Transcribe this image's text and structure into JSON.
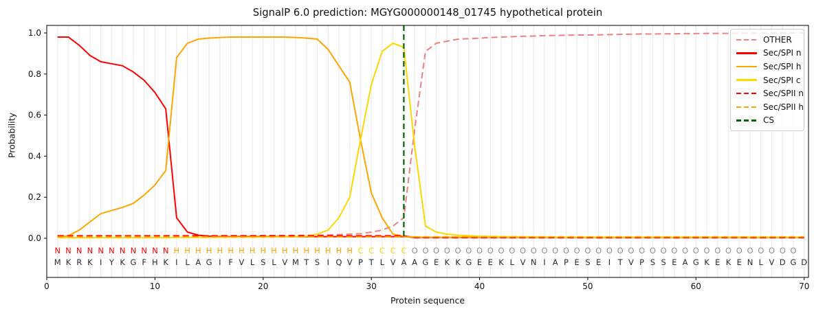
{
  "title": "SignalP 6.0 prediction: MGYG000000148_01745 hypothetical protein",
  "chart_data": {
    "type": "line",
    "title": "SignalP 6.0 prediction: MGYG000000148_01745 hypothetical protein",
    "xlabel": "Protein sequence",
    "ylabel": "Probability",
    "xlim": [
      0,
      70.4
    ],
    "ylim": [
      -0.19,
      1.04
    ],
    "x_ticks": [
      0,
      10,
      20,
      30,
      40,
      50,
      60,
      70
    ],
    "x_tick_labels": [
      "0",
      "10",
      "20",
      "30",
      "40",
      "50",
      "60",
      "70"
    ],
    "y_ticks": [
      0.0,
      0.2,
      0.4,
      0.6,
      0.8,
      1.0
    ],
    "y_tick_labels": [
      "0.0",
      "0.2",
      "0.4",
      "0.6",
      "0.8",
      "1.0"
    ],
    "grid": {
      "vertical_per_residue": true,
      "color": "#ececec"
    },
    "legend_position": "upper right",
    "x_start": 1,
    "sequence": "MKRKIYKGFHKILAGIFVLSLVMTSIQVPTLVAAGEKKGEEKLVNIAPESEITVPSSEAGKEKENLVDGD",
    "region_labels": "NNNNNNNNNNNHHHHHHHHHHHHHHHHHCCCCCOOOOOOOOOOOOOOOOOOOOOOOOOOOOOOOOOOOO",
    "region_colors": {
      "N": "#ff0000",
      "H": "#ffa500",
      "C": "#ffd700",
      "O": "#909090"
    },
    "sequence_color": "#2b2b2b",
    "cs": {
      "label": "CS",
      "position": 33,
      "color": "#006400",
      "dashed": true
    },
    "series": [
      {
        "name": "OTHER",
        "color": "#f08080",
        "dashed": true,
        "values": [
          0.01,
          0.01,
          0.01,
          0.01,
          0.01,
          0.01,
          0.01,
          0.01,
          0.01,
          0.01,
          0.01,
          0.01,
          0.01,
          0.01,
          0.01,
          0.012,
          0.012,
          0.012,
          0.012,
          0.013,
          0.013,
          0.013,
          0.014,
          0.014,
          0.015,
          0.016,
          0.018,
          0.02,
          0.022,
          0.03,
          0.04,
          0.06,
          0.1,
          0.53,
          0.91,
          0.95,
          0.96,
          0.97,
          0.972,
          0.975,
          0.978,
          0.98,
          0.982,
          0.984,
          0.985,
          0.987,
          0.988,
          0.989,
          0.99,
          0.99,
          0.991,
          0.992,
          0.993,
          0.994,
          0.995,
          0.995,
          0.996,
          0.996,
          0.997,
          0.997,
          0.998,
          0.998,
          0.998,
          0.999,
          0.999,
          0.999,
          1.0,
          1.0,
          1.0,
          1.0
        ]
      },
      {
        "name": "Sec/SPI n",
        "color": "#ff0000",
        "dashed": false,
        "values": [
          0.98,
          0.98,
          0.94,
          0.89,
          0.86,
          0.85,
          0.84,
          0.81,
          0.77,
          0.71,
          0.63,
          0.1,
          0.03,
          0.015,
          0.01,
          0.008,
          0.008,
          0.008,
          0.008,
          0.008,
          0.008,
          0.008,
          0.008,
          0.008,
          0.008,
          0.008,
          0.008,
          0.008,
          0.008,
          0.008,
          0.008,
          0.008,
          0.008,
          0.004,
          0.004,
          0.004,
          0.004,
          0.004,
          0.004,
          0.004,
          0.004,
          0.004,
          0.004,
          0.004,
          0.004,
          0.004,
          0.004,
          0.004,
          0.004,
          0.004,
          0.004,
          0.004,
          0.004,
          0.004,
          0.004,
          0.004,
          0.004,
          0.004,
          0.004,
          0.004,
          0.004,
          0.004,
          0.004,
          0.004,
          0.004,
          0.004,
          0.004,
          0.004,
          0.004,
          0.004
        ]
      },
      {
        "name": "Sec/SPI h",
        "color": "#ffa500",
        "dashed": false,
        "values": [
          0.005,
          0.012,
          0.04,
          0.08,
          0.12,
          0.135,
          0.15,
          0.17,
          0.21,
          0.26,
          0.33,
          0.88,
          0.95,
          0.97,
          0.975,
          0.978,
          0.98,
          0.98,
          0.98,
          0.98,
          0.98,
          0.98,
          0.978,
          0.975,
          0.97,
          0.92,
          0.84,
          0.76,
          0.48,
          0.22,
          0.1,
          0.02,
          0.01,
          0.006,
          0.005,
          0.005,
          0.005,
          0.005,
          0.005,
          0.005,
          0.005,
          0.005,
          0.005,
          0.005,
          0.005,
          0.005,
          0.005,
          0.005,
          0.005,
          0.005,
          0.005,
          0.005,
          0.005,
          0.005,
          0.005,
          0.005,
          0.005,
          0.005,
          0.005,
          0.005,
          0.005,
          0.005,
          0.005,
          0.005,
          0.005,
          0.005,
          0.005,
          0.005,
          0.005,
          0.005
        ]
      },
      {
        "name": "Sec/SPI c",
        "color": "#ffd700",
        "dashed": false,
        "values": [
          0.003,
          0.003,
          0.003,
          0.003,
          0.003,
          0.003,
          0.003,
          0.003,
          0.003,
          0.003,
          0.003,
          0.004,
          0.004,
          0.004,
          0.004,
          0.005,
          0.005,
          0.005,
          0.005,
          0.006,
          0.006,
          0.007,
          0.008,
          0.01,
          0.02,
          0.04,
          0.1,
          0.2,
          0.48,
          0.75,
          0.91,
          0.95,
          0.93,
          0.45,
          0.06,
          0.03,
          0.02,
          0.015,
          0.012,
          0.01,
          0.009,
          0.008,
          0.008,
          0.007,
          0.007,
          0.007,
          0.006,
          0.006,
          0.006,
          0.006,
          0.006,
          0.006,
          0.006,
          0.006,
          0.006,
          0.006,
          0.006,
          0.006,
          0.006,
          0.006,
          0.006,
          0.006,
          0.006,
          0.006,
          0.006,
          0.006,
          0.006,
          0.006,
          0.006,
          0.006
        ]
      },
      {
        "name": "Sec/SPII n",
        "color": "#ff0000",
        "dashed": true,
        "values": [
          0.012,
          0.012,
          0.012,
          0.012,
          0.012,
          0.012,
          0.012,
          0.012,
          0.012,
          0.012,
          0.012,
          0.012,
          0.012,
          0.012,
          0.012,
          0.012,
          0.012,
          0.012,
          0.012,
          0.012,
          0.012,
          0.012,
          0.012,
          0.012,
          0.012,
          0.012,
          0.012,
          0.012,
          0.012,
          0.012,
          0.012,
          0.012,
          0.012,
          0.003,
          0.003,
          0.003,
          0.003,
          0.003,
          0.003,
          0.003,
          0.003,
          0.003,
          0.003,
          0.003,
          0.003,
          0.003,
          0.003,
          0.003,
          0.003,
          0.003,
          0.003,
          0.003,
          0.003,
          0.003,
          0.003,
          0.003,
          0.003,
          0.003,
          0.003,
          0.003,
          0.003,
          0.003,
          0.003,
          0.003,
          0.003,
          0.003,
          0.003,
          0.003,
          0.003,
          0.003
        ]
      },
      {
        "name": "Sec/SPII h",
        "color": "#ffa500",
        "dashed": true,
        "values": [
          0.007,
          0.007,
          0.007,
          0.007,
          0.007,
          0.007,
          0.007,
          0.007,
          0.007,
          0.007,
          0.007,
          0.007,
          0.007,
          0.007,
          0.007,
          0.007,
          0.007,
          0.007,
          0.007,
          0.007,
          0.007,
          0.007,
          0.007,
          0.007,
          0.007,
          0.007,
          0.007,
          0.007,
          0.007,
          0.007,
          0.007,
          0.007,
          0.007,
          0.007,
          0.007,
          0.007,
          0.007,
          0.007,
          0.007,
          0.007,
          0.007,
          0.007,
          0.007,
          0.007,
          0.007,
          0.007,
          0.007,
          0.007,
          0.007,
          0.007,
          0.007,
          0.007,
          0.007,
          0.007,
          0.007,
          0.007,
          0.007,
          0.007,
          0.007,
          0.007,
          0.007,
          0.007,
          0.007,
          0.007,
          0.007,
          0.007,
          0.007,
          0.007,
          0.007,
          0.007
        ]
      }
    ],
    "legend_items": [
      {
        "label": "OTHER",
        "color": "#f08080",
        "dashed": true
      },
      {
        "label": "Sec/SPI n",
        "color": "#ff0000",
        "dashed": false
      },
      {
        "label": "Sec/SPI h",
        "color": "#ffa500",
        "dashed": false
      },
      {
        "label": "Sec/SPI c",
        "color": "#ffd700",
        "dashed": false
      },
      {
        "label": "Sec/SPII n",
        "color": "#ff0000",
        "dashed": true
      },
      {
        "label": "Sec/SPII h",
        "color": "#ffa500",
        "dashed": true
      },
      {
        "label": "CS",
        "color": "#006400",
        "dashed": true
      }
    ]
  }
}
